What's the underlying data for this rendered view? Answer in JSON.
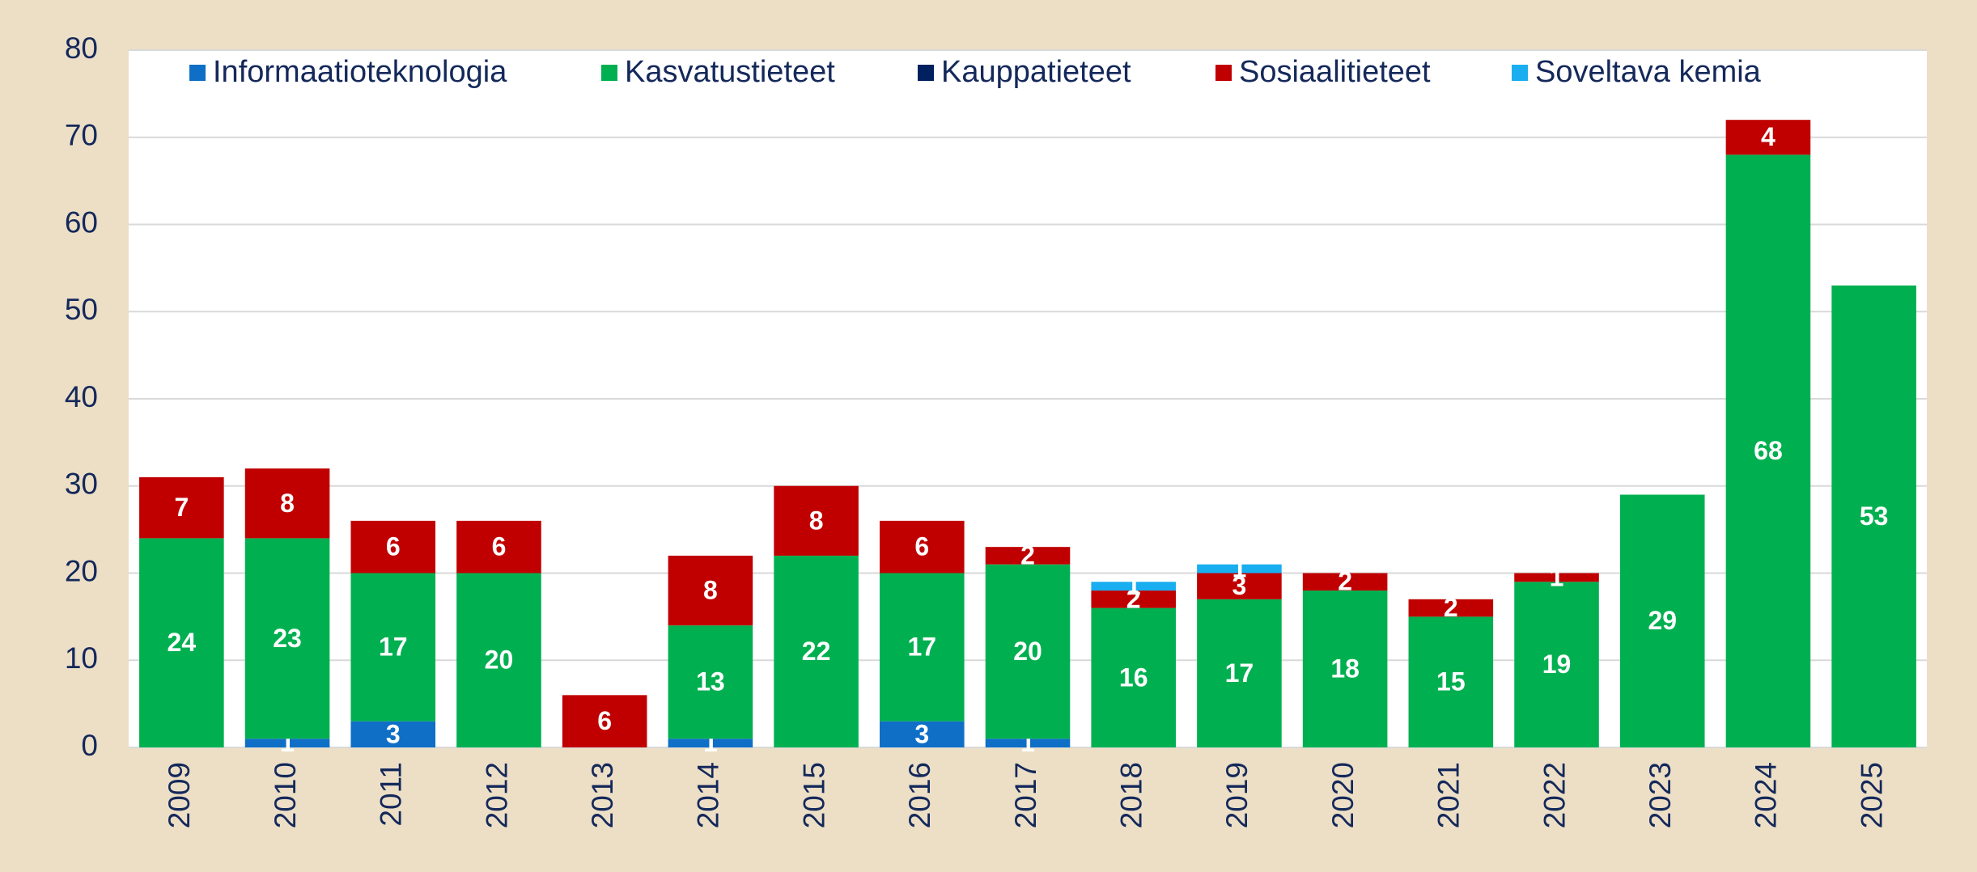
{
  "chart_data": {
    "type": "stacked_bar",
    "categories": [
      "2009",
      "2010",
      "2011",
      "2012",
      "2013",
      "2014",
      "2015",
      "2016",
      "2017",
      "2018",
      "2019",
      "2020",
      "2021",
      "2022",
      "2023",
      "2024",
      "2025"
    ],
    "series": [
      {
        "name": "Informaatioteknologia",
        "color": "#0f6fc6",
        "values": [
          null,
          1,
          3,
          null,
          null,
          1,
          null,
          3,
          1,
          null,
          null,
          null,
          null,
          null,
          null,
          null,
          null
        ]
      },
      {
        "name": "Kasvatustieteet",
        "color": "#00b050",
        "values": [
          24,
          23,
          17,
          20,
          null,
          13,
          22,
          17,
          20,
          16,
          17,
          18,
          15,
          19,
          29,
          68,
          53
        ]
      },
      {
        "name": "Kauppatieteet",
        "color": "#002060",
        "values": [
          null,
          null,
          null,
          null,
          null,
          null,
          null,
          null,
          null,
          null,
          null,
          null,
          null,
          null,
          null,
          null,
          null
        ]
      },
      {
        "name": "Sosiaalitieteet",
        "color": "#c00000",
        "values": [
          7,
          8,
          6,
          6,
          6,
          8,
          8,
          6,
          2,
          2,
          3,
          2,
          2,
          1,
          null,
          4,
          null
        ]
      },
      {
        "name": "Soveltava kemia",
        "color": "#19aef0",
        "values": [
          null,
          null,
          null,
          null,
          null,
          null,
          null,
          null,
          null,
          1,
          1,
          null,
          null,
          null,
          null,
          null,
          null
        ]
      }
    ],
    "ylim": [
      0,
      80
    ],
    "yticks": [
      0,
      10,
      20,
      30,
      40,
      50,
      60,
      70,
      80
    ],
    "grid": true,
    "legend": "top"
  }
}
